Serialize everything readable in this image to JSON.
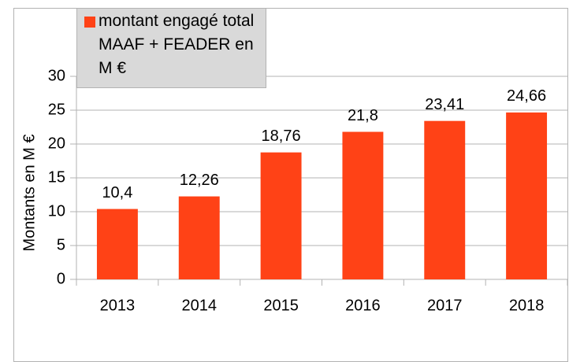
{
  "chart_data": {
    "type": "bar",
    "ylabel": "Montants en M €",
    "categories": [
      "2013",
      "2014",
      "2015",
      "2016",
      "2017",
      "2018"
    ],
    "series": [
      {
        "name": "montant engagé total MAAF + FEADER en M €",
        "color": "#ff4216",
        "values": [
          10.4,
          12.26,
          18.76,
          21.8,
          23.41,
          24.66
        ],
        "value_labels": [
          "10,4",
          "12,26",
          "18,76",
          "21,8",
          "23,41",
          "24,66"
        ]
      }
    ],
    "ylim": [
      0,
      30
    ],
    "yticks": [
      0,
      5,
      10,
      15,
      20,
      25,
      30
    ],
    "grid": true,
    "legend": "top-left"
  }
}
